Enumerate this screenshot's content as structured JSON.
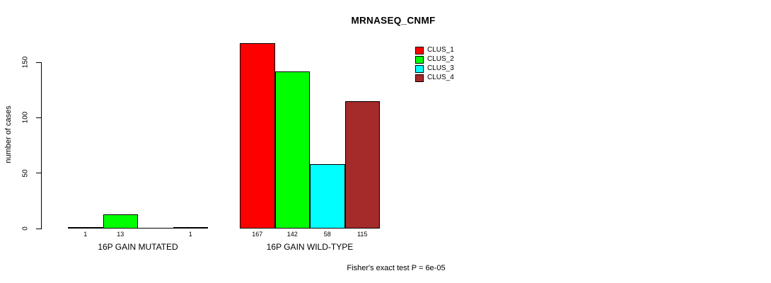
{
  "title": "MRNASEQ_CNMF",
  "y_axis": {
    "label": "number of cases",
    "ticks": [
      0,
      50,
      100,
      150
    ]
  },
  "footer": "Fisher's exact test P = 6e-05",
  "chart_data": {
    "type": "bar",
    "title": "MRNASEQ_CNMF",
    "ylabel": "number of cases",
    "xlabel": "",
    "categories": [
      "16P GAIN MUTATED",
      "16P GAIN WILD-TYPE"
    ],
    "series": [
      {
        "name": "CLUS_1",
        "color": "#FF0000",
        "values": [
          1,
          167
        ]
      },
      {
        "name": "CLUS_2",
        "color": "#00FF00",
        "values": [
          13,
          142
        ]
      },
      {
        "name": "CLUS_3",
        "color": "#00FFFF",
        "values": [
          0,
          58
        ]
      },
      {
        "name": "CLUS_4",
        "color": "#A52A2A",
        "values": [
          1,
          115
        ]
      }
    ],
    "bar_labels": [
      [
        "1",
        "13",
        "",
        "1"
      ],
      [
        "167",
        "142",
        "58",
        "115"
      ]
    ],
    "yticks": [
      0,
      50,
      100,
      150
    ],
    "ylim": [
      0,
      167
    ],
    "grid": false,
    "legend_position": "top-right",
    "annotation": "Fisher's exact test P = 6e-05"
  }
}
